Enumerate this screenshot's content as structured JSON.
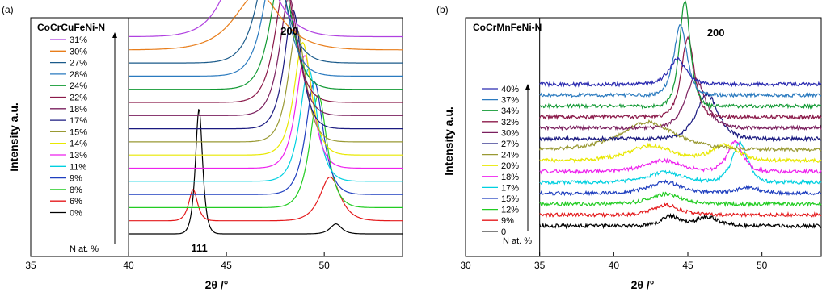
{
  "chart_data": [
    {
      "type": "line",
      "panel_label": "(a)",
      "alloy": "CoCrCuFeNi-N",
      "xlabel": "2θ /°",
      "ylabel": "Intensity a.u.",
      "xlim": [
        35,
        54
      ],
      "x_ticks": [
        35,
        40,
        45,
        50
      ],
      "legend_title": "N at. %",
      "legend_placement": "left",
      "peak_labels": [
        {
          "text": "200",
          "x": 48.3
        },
        {
          "text": "111",
          "x": 43.7
        }
      ],
      "series": [
        {
          "name": "0%",
          "color": "#000000",
          "peaks": [
            [
              43.6,
              1.0,
              0.25
            ],
            [
              50.6,
              0.08,
              0.4
            ]
          ]
        },
        {
          "name": "6%",
          "color": "#e41a1c",
          "peaks": [
            [
              43.3,
              0.25,
              0.3
            ],
            [
              50.3,
              0.35,
              0.7
            ]
          ]
        },
        {
          "name": "8%",
          "color": "#22cc22",
          "peaks": [
            [
              49.7,
              0.9,
              0.6
            ]
          ]
        },
        {
          "name": "9%",
          "color": "#1f3fbf",
          "peaks": [
            [
              49.5,
              0.9,
              0.6
            ]
          ]
        },
        {
          "name": "11%",
          "color": "#00d0e0",
          "peaks": [
            [
              49.2,
              0.9,
              0.6
            ]
          ]
        },
        {
          "name": "13%",
          "color": "#ee22ee",
          "peaks": [
            [
              49.0,
              0.9,
              0.6
            ]
          ]
        },
        {
          "name": "14%",
          "color": "#e8e800",
          "peaks": [
            [
              48.9,
              0.9,
              0.6
            ]
          ]
        },
        {
          "name": "15%",
          "color": "#999933",
          "peaks": [
            [
              48.6,
              0.9,
              0.6
            ]
          ]
        },
        {
          "name": "17%",
          "color": "#1a1a80",
          "peaks": [
            [
              48.4,
              0.95,
              0.6
            ]
          ]
        },
        {
          "name": "18%",
          "color": "#7a1f5e",
          "peaks": [
            [
              48.2,
              0.95,
              0.65
            ]
          ]
        },
        {
          "name": "22%",
          "color": "#8b1a4a",
          "peaks": [
            [
              48.0,
              0.95,
              0.7
            ]
          ]
        },
        {
          "name": "24%",
          "color": "#119933",
          "peaks": [
            [
              47.8,
              0.95,
              0.75
            ]
          ]
        },
        {
          "name": "28%",
          "color": "#2a7abf",
          "peaks": [
            [
              47.5,
              0.95,
              0.8
            ]
          ]
        },
        {
          "name": "27%",
          "color": "#1a5a8a",
          "peaks": [
            [
              47.3,
              0.95,
              0.9
            ]
          ]
        },
        {
          "name": "30%",
          "color": "#e87d1a",
          "peaks": [
            [
              46.6,
              0.45,
              1.6
            ]
          ]
        },
        {
          "name": "31%",
          "color": "#b040e0",
          "peaks": [
            [
              46.2,
              0.9,
              1.3
            ]
          ]
        }
      ]
    },
    {
      "type": "line",
      "panel_label": "(b)",
      "alloy": "CoCrMnFeNi-N",
      "xlabel": "2θ /°",
      "ylabel": "Intensity a.u.",
      "xlim": [
        30,
        54
      ],
      "x_ticks": [
        30,
        35,
        40,
        45,
        50
      ],
      "legend_title": "N at. %",
      "legend_placement": "left",
      "peak_labels": [
        {
          "text": "200",
          "x": 47
        }
      ],
      "series": [
        {
          "name": "0",
          "color": "#000000",
          "peaks": [
            [
              43.8,
              0.2,
              0.8
            ],
            [
              46.3,
              0.18,
              1.0
            ]
          ]
        },
        {
          "name": "9%",
          "color": "#e41a1c",
          "peaks": [
            [
              43.5,
              0.2,
              1.2
            ]
          ]
        },
        {
          "name": "12%",
          "color": "#22cc22",
          "peaks": [
            [
              43.5,
              0.2,
              1.4
            ]
          ]
        },
        {
          "name": "15%",
          "color": "#1f3fbf",
          "peaks": [
            [
              43.5,
              0.22,
              1.5
            ],
            [
              49,
              0.12,
              1.0
            ]
          ]
        },
        {
          "name": "17%",
          "color": "#00d0e0",
          "peaks": [
            [
              43.5,
              0.2,
              1.6
            ],
            [
              48.5,
              0.8,
              0.7
            ]
          ]
        },
        {
          "name": "18%",
          "color": "#ee22ee",
          "peaks": [
            [
              43.3,
              0.22,
              1.6
            ],
            [
              48.2,
              0.6,
              0.7
            ]
          ]
        },
        {
          "name": "20%",
          "color": "#e8e800",
          "peaks": [
            [
              42.5,
              0.3,
              2.0
            ],
            [
              47.5,
              0.3,
              1.2
            ]
          ]
        },
        {
          "name": "24%",
          "color": "#999933",
          "peaks": [
            [
              42.3,
              0.55,
              2.5
            ]
          ]
        },
        {
          "name": "27%",
          "color": "#1a1a80",
          "peaks": [
            [
              46.3,
              0.9,
              1.0
            ]
          ]
        },
        {
          "name": "30%",
          "color": "#7a1f5e",
          "peaks": [
            [
              45.5,
              1.0,
              0.9
            ]
          ]
        },
        {
          "name": "32%",
          "color": "#8b1a4a",
          "peaks": [
            [
              45.0,
              1.6,
              0.6
            ]
          ]
        },
        {
          "name": "34%",
          "color": "#119933",
          "peaks": [
            [
              44.8,
              2.1,
              0.5
            ]
          ]
        },
        {
          "name": "37%",
          "color": "#2a7abf",
          "peaks": [
            [
              44.5,
              1.4,
              0.6
            ]
          ]
        },
        {
          "name": "40%",
          "color": "#2a2ab0",
          "peaks": [
            [
              44.3,
              0.5,
              0.8
            ]
          ]
        }
      ]
    }
  ]
}
